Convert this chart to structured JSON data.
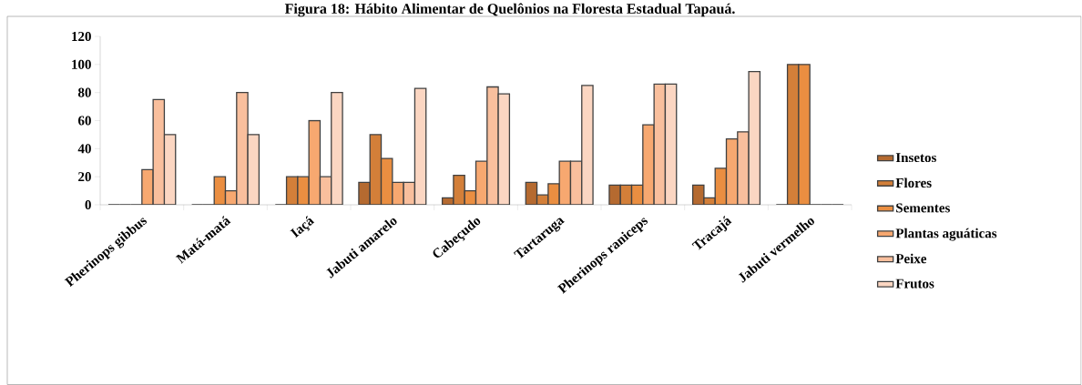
{
  "chart_data": {
    "type": "bar",
    "title": "Figura 18: Hábito Alimentar de Quelônios na Floresta Estadual Tapauá.",
    "categories": [
      "Pherinops gibbus",
      "Matá-matá",
      "Iaçá",
      "Jabuti amarelo",
      "Cabeçudo",
      "Tartaruga",
      "Pherinops raniceps",
      "Tracajá",
      "Jabuti vermelho"
    ],
    "series": [
      {
        "name": "Insetos",
        "color": "#b56a30",
        "values": [
          0,
          0,
          0,
          16,
          5,
          16,
          14,
          14,
          0
        ]
      },
      {
        "name": "Flores",
        "color": "#d37f39",
        "values": [
          0,
          0,
          20,
          50,
          21,
          7,
          14,
          5,
          100
        ]
      },
      {
        "name": "Sementes",
        "color": "#ea8e41",
        "values": [
          0,
          20,
          20,
          33,
          10,
          15,
          14,
          26,
          100
        ]
      },
      {
        "name": "Plantas aguáticas",
        "color": "#f7a870",
        "values": [
          25,
          10,
          60,
          16,
          31,
          31,
          57,
          47,
          0
        ]
      },
      {
        "name": "Peixe",
        "color": "#f9bf9d",
        "values": [
          75,
          80,
          20,
          16,
          84,
          31,
          86,
          52,
          0
        ]
      },
      {
        "name": "Frutos",
        "color": "#fbd6c2",
        "values": [
          50,
          50,
          80,
          83,
          79,
          85,
          86,
          95,
          0
        ]
      }
    ],
    "ylim": [
      0,
      120
    ],
    "yticks": [
      0,
      20,
      40,
      60,
      80,
      100,
      120
    ],
    "grid": false,
    "legend": "right"
  }
}
